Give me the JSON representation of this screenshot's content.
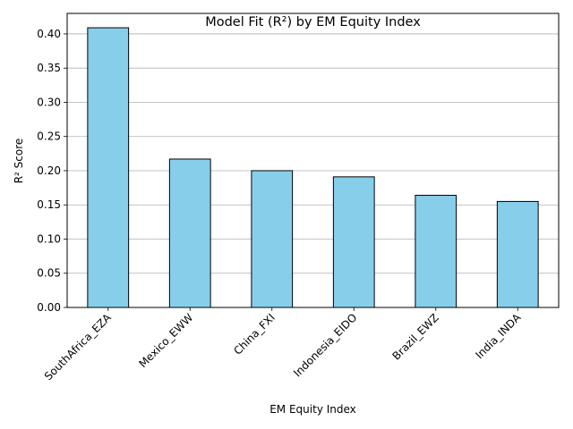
{
  "chart_data": {
    "type": "bar",
    "title": "Model Fit (R²) by EM Equity Index",
    "xlabel": "EM Equity Index",
    "ylabel": "R² Score",
    "categories": [
      "SouthAfrica_EZA",
      "Mexico_EWW",
      "China_FXI",
      "Indonesia_EIDO",
      "Brazil_EWZ",
      "India_INDA"
    ],
    "values": [
      0.409,
      0.217,
      0.2,
      0.191,
      0.164,
      0.155
    ],
    "ylim": [
      0,
      0.43
    ],
    "yticks": [
      "0.00",
      "0.05",
      "0.10",
      "0.15",
      "0.20",
      "0.25",
      "0.30",
      "0.35",
      "0.40"
    ],
    "grid": "y",
    "bar_color": "#87CEEB",
    "edge_color": "#000000",
    "grid_color": "#b0b0b0"
  }
}
